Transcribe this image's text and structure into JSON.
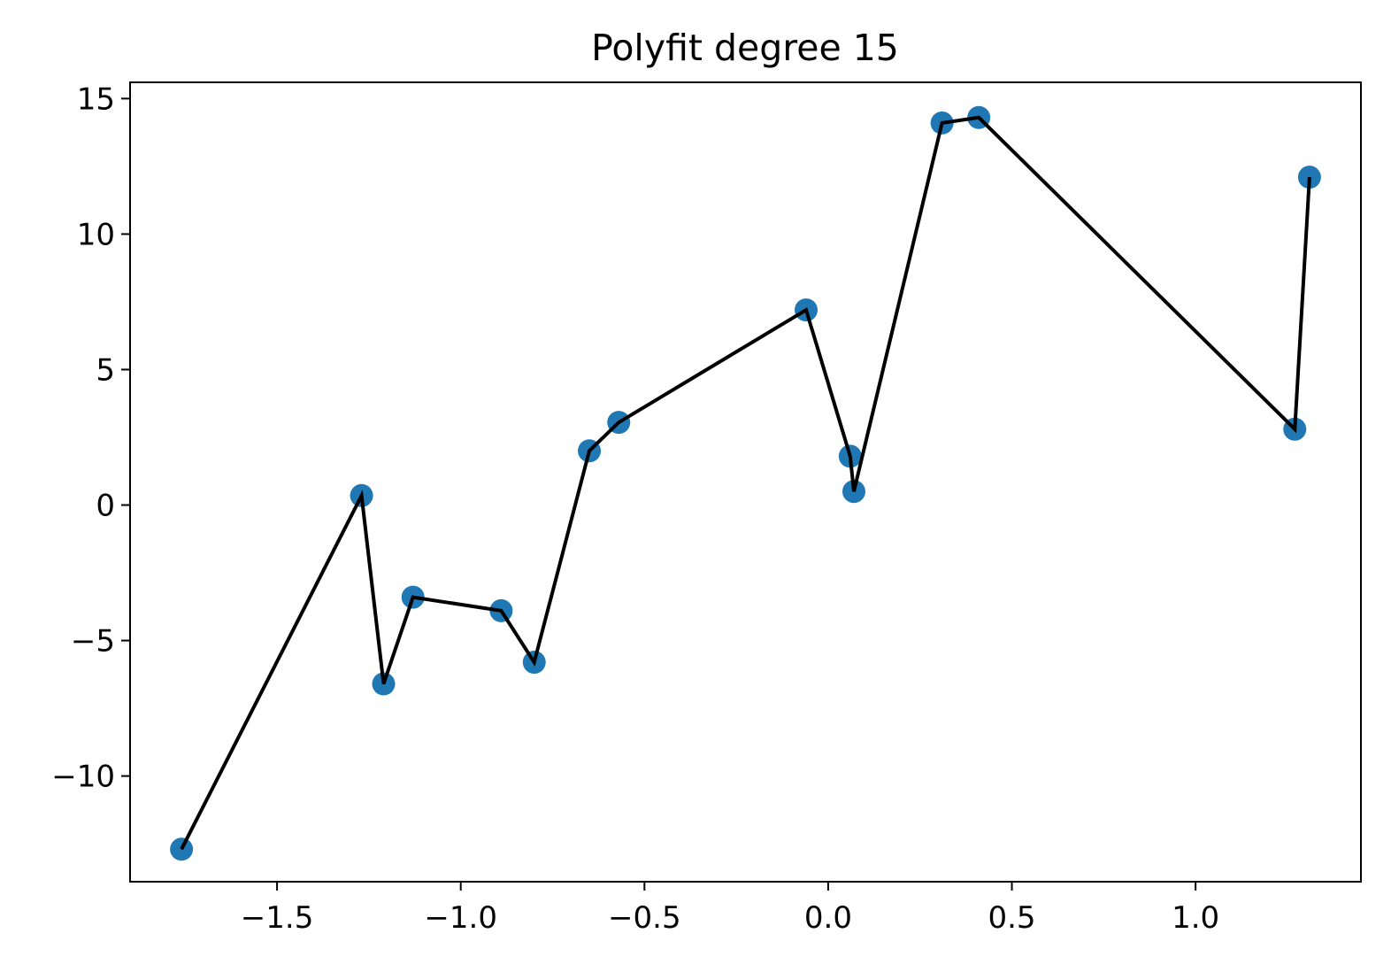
{
  "chart_data": {
    "type": "scatter",
    "title": "Polyfit degree 15",
    "xlabel": "",
    "ylabel": "",
    "xlim": [
      -1.9,
      1.45
    ],
    "ylim": [
      -13.9,
      15.6
    ],
    "grid": false,
    "legend": "none",
    "x_ticks": [
      -1.5,
      -1.0,
      -0.5,
      0.0,
      0.5,
      1.0
    ],
    "x_tick_labels": [
      "−1.5",
      "−1.0",
      "−0.5",
      "0.0",
      "0.5",
      "1.0"
    ],
    "y_ticks": [
      -10,
      -5,
      0,
      5,
      10,
      15
    ],
    "y_tick_labels": [
      "−10",
      "−5",
      "0",
      "5",
      "10",
      "15"
    ],
    "series": [
      {
        "kind": "scatter",
        "color": "#1f77b4",
        "x": [
          -1.76,
          -1.27,
          -1.21,
          -1.13,
          -0.89,
          -0.8,
          -0.65,
          -0.57,
          -0.06,
          0.06,
          0.07,
          0.31,
          0.41,
          1.27,
          1.31
        ],
        "y": [
          -12.7,
          0.35,
          -6.6,
          -3.4,
          -3.9,
          -5.8,
          2.0,
          3.05,
          7.2,
          1.8,
          0.5,
          14.1,
          14.3,
          2.8,
          12.1
        ]
      },
      {
        "kind": "line",
        "color": "#000000",
        "x": [
          -1.76,
          -1.27,
          -1.21,
          -1.13,
          -0.89,
          -0.8,
          -0.65,
          -0.57,
          -0.06,
          0.06,
          0.07,
          0.31,
          0.41,
          1.27,
          1.31
        ],
        "y": [
          -12.7,
          0.35,
          -6.6,
          -3.4,
          -3.9,
          -5.8,
          2.0,
          3.05,
          7.2,
          1.8,
          0.5,
          14.1,
          14.3,
          2.8,
          12.1
        ]
      }
    ]
  }
}
